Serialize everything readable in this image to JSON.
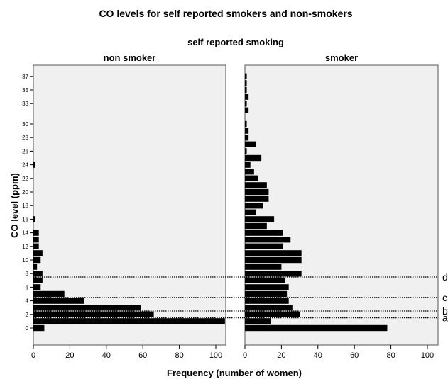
{
  "chart_data": {
    "type": "bar",
    "orientation": "horizontal",
    "title": "CO levels for self reported smokers and non-smokers",
    "facet_title": "self reported smoking",
    "xlabel": "Frequency (number of women)",
    "ylabel": "CO level (ppm)",
    "xlim": [
      0,
      105
    ],
    "x_ticks": [
      "0",
      "20",
      "40",
      "60",
      "80",
      "100"
    ],
    "y_ticks": [
      "0",
      "2",
      "4",
      "6",
      "8",
      "10",
      "12",
      "14",
      "16",
      "18",
      "20",
      "22",
      "24",
      "26",
      "28",
      "30",
      "33",
      "35",
      "37"
    ],
    "categories": [
      "0",
      "1",
      "2",
      "3",
      "4",
      "5",
      "6",
      "7",
      "8",
      "9",
      "10",
      "11",
      "12",
      "13",
      "14",
      "15",
      "16",
      "17",
      "18",
      "19",
      "20",
      "21",
      "22",
      "23",
      "24",
      "25",
      "26",
      "27",
      "28",
      "29",
      "30",
      "32",
      "33",
      "34",
      "35",
      "36",
      "37"
    ],
    "panels": [
      {
        "name": "non smoker",
        "values": [
          6,
          105,
          66,
          59,
          28,
          17,
          4,
          5,
          5,
          2,
          4,
          5,
          3,
          3,
          3,
          0,
          1,
          0,
          0,
          0,
          0,
          0,
          0,
          0,
          1,
          0,
          0,
          0,
          0,
          0,
          0,
          0,
          0,
          0,
          0,
          0,
          0
        ]
      },
      {
        "name": "smoker",
        "values": [
          78,
          14,
          30,
          26,
          24,
          23,
          24,
          22,
          31,
          20,
          31,
          31,
          21,
          25,
          21,
          12,
          16,
          6,
          10,
          13,
          13,
          12,
          7,
          5,
          3,
          9,
          1,
          6,
          2,
          2,
          1,
          2,
          1,
          2,
          1,
          1,
          1
        ]
      }
    ],
    "reference_lines": [
      {
        "label": "a",
        "at": 1.5
      },
      {
        "label": "b",
        "at": 2.5
      },
      {
        "label": "c",
        "at": 4.5
      },
      {
        "label": "d",
        "at": 7.5
      }
    ],
    "grid": false,
    "colors": {
      "bar": "#000000",
      "panel_bg": "#f0f0f0",
      "border": "#555555"
    }
  }
}
